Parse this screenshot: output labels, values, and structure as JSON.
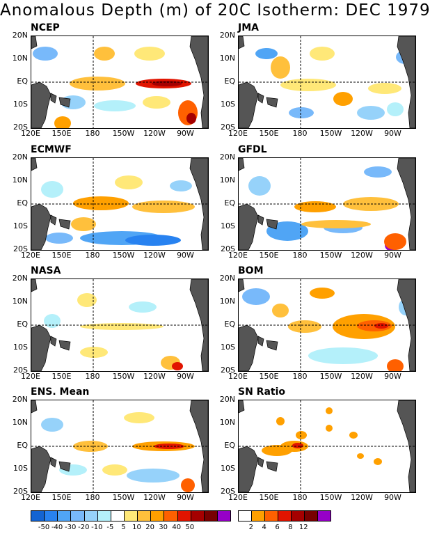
{
  "title": "Anomalous Depth (m) of 20C Isotherm: DEC 1979",
  "lat_labels": [
    "20N",
    "10N",
    "EQ",
    "10S",
    "20S"
  ],
  "lon_labels": [
    "120E",
    "150E",
    "180",
    "150W",
    "120W",
    "90W"
  ],
  "panels": [
    {
      "name": "NCEP",
      "id": "ncep"
    },
    {
      "name": "JMA",
      "id": "jma"
    },
    {
      "name": "ECMWF",
      "id": "ecmwf"
    },
    {
      "name": "GFDL",
      "id": "gfdl"
    },
    {
      "name": "NASA",
      "id": "nasa"
    },
    {
      "name": "BOM",
      "id": "bom"
    },
    {
      "name": "ENS. Mean",
      "id": "ens-mean"
    },
    {
      "name": "SN Ratio",
      "id": "sn-ratio"
    }
  ],
  "anomaly_colorbar": {
    "levels": [
      "-50",
      "-40",
      "-30",
      "-20",
      "-10",
      "-5",
      "5",
      "10",
      "20",
      "30",
      "40",
      "50"
    ],
    "colors": [
      "#1464d2",
      "#2882f0",
      "#50a5f5",
      "#78b9fa",
      "#96d2fa",
      "#b4f0fa",
      "#ffffff",
      "#ffe878",
      "#ffc03c",
      "#ffa000",
      "#ff6000",
      "#e11400",
      "#a50000",
      "#780000",
      "#9600c8"
    ]
  },
  "snratio_colorbar": {
    "levels": [
      "2",
      "4",
      "6",
      "8",
      "12"
    ],
    "colors": [
      "#ffffff",
      "#ffa000",
      "#ff6000",
      "#e11400",
      "#a50000",
      "#780000",
      "#9600c8"
    ]
  },
  "colors": {
    "land": "#555555",
    "frame": "#000000"
  }
}
